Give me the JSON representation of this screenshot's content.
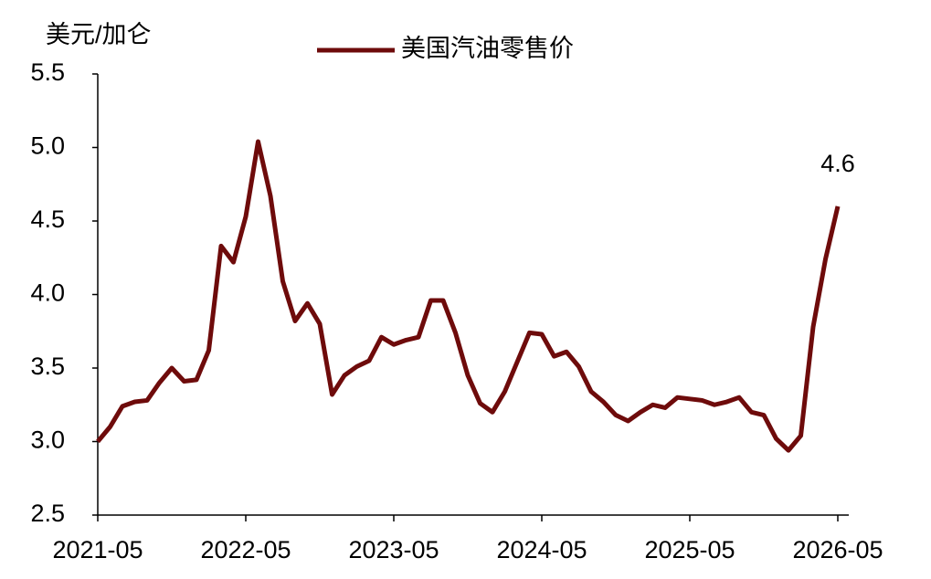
{
  "chart_data": {
    "type": "line",
    "y_label": "美元/加仑",
    "categories": [
      "2021-05",
      null,
      null,
      null,
      null,
      null,
      null,
      null,
      null,
      null,
      null,
      null,
      "2022-05",
      null,
      null,
      null,
      null,
      null,
      null,
      null,
      null,
      null,
      null,
      null,
      "2023-05",
      null,
      null,
      null,
      null,
      null,
      null,
      null,
      null,
      null,
      null,
      null,
      "2024-05",
      null,
      null,
      null,
      null,
      null,
      null,
      null,
      null,
      null,
      null,
      null,
      "2025-05",
      null,
      null,
      null,
      null,
      null,
      null,
      null,
      null,
      null,
      null,
      null,
      "2026-05"
    ],
    "series": [
      {
        "name": "美国汽油零售价",
        "color": "#6e0b0b",
        "values": [
          3.0,
          3.1,
          3.24,
          3.27,
          3.28,
          3.4,
          3.5,
          3.41,
          3.42,
          3.62,
          4.33,
          4.22,
          4.53,
          5.04,
          4.67,
          4.09,
          3.82,
          3.94,
          3.8,
          3.32,
          3.45,
          3.51,
          3.55,
          3.71,
          3.66,
          3.69,
          3.71,
          3.96,
          3.96,
          3.74,
          3.45,
          3.26,
          3.2,
          3.34,
          3.54,
          3.74,
          3.73,
          3.58,
          3.61,
          3.51,
          3.34,
          3.27,
          3.18,
          3.14,
          3.2,
          3.25,
          3.23,
          3.3,
          3.29,
          3.28,
          3.25,
          3.27,
          3.3,
          3.2,
          3.18,
          3.02,
          2.94,
          3.04,
          3.78,
          4.24,
          4.6
        ]
      }
    ],
    "ylim": [
      2.5,
      5.5
    ],
    "yticks": [
      2.5,
      {
        "value": 3,
        "label": "3.0"
      },
      3.5,
      {
        "value": 4,
        "label": "4.0"
      },
      4.5,
      {
        "value": 5,
        "label": "5.0"
      },
      5.5
    ],
    "label_last_point": true,
    "legend": "top"
  }
}
